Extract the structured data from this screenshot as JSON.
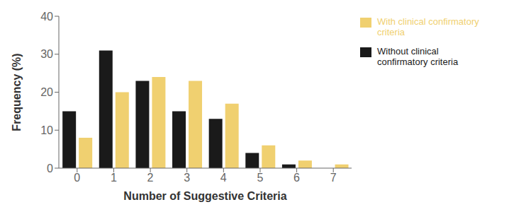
{
  "chart_data": {
    "type": "bar",
    "categories": [
      "0",
      "1",
      "2",
      "3",
      "4",
      "5",
      "6",
      "7"
    ],
    "series": [
      {
        "name": "Without clinical\nconfirmatory criteria",
        "color": "#1a1a1a",
        "values": [
          15,
          31,
          23,
          15,
          13,
          4,
          1,
          0
        ]
      },
      {
        "name": "With clinical confirmatory\ncriteria",
        "color": "#f0d070",
        "values": [
          8,
          20,
          24,
          23,
          17,
          6,
          2,
          1
        ]
      }
    ],
    "xlabel": "Number of Suggestive Criteria",
    "ylabel": "Frequency (%)",
    "ylim": [
      0,
      40
    ],
    "yticks": [
      0,
      10,
      20,
      30,
      40
    ],
    "grid": false,
    "legend": "right"
  }
}
